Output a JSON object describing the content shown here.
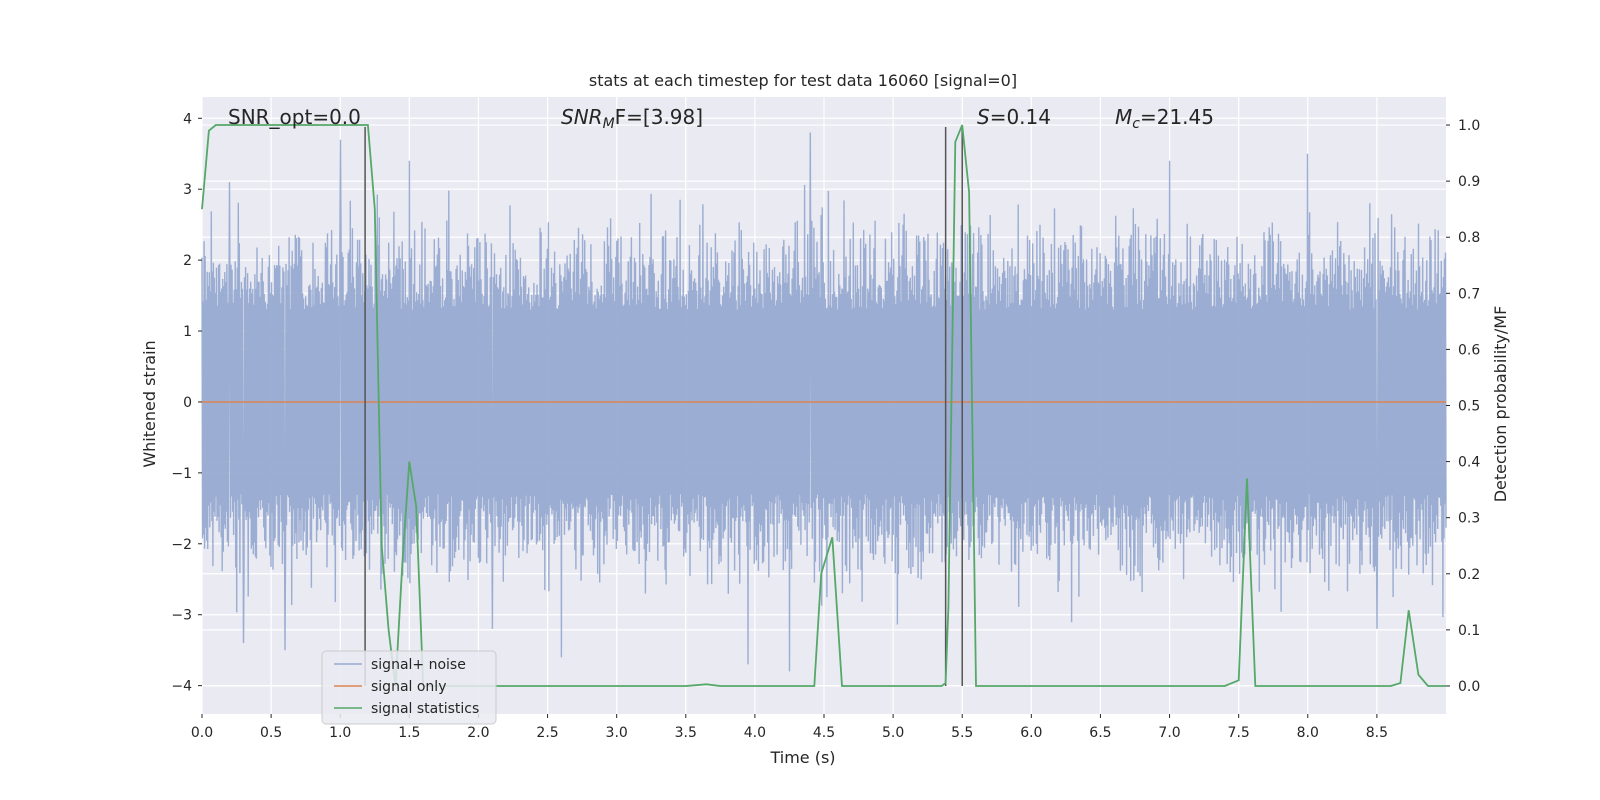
{
  "chart_data": {
    "type": "line",
    "title": "stats at each timestep for test data 16060 [signal=0]",
    "xlabel": "Time (s)",
    "ylabel_left": "Whitened strain",
    "ylabel_right": "Detection probability/MF",
    "xlim": [
      0.0,
      9.0
    ],
    "ylim_left": [
      -4.4,
      4.3
    ],
    "ylim_right": [
      -0.05,
      1.05
    ],
    "xticks": [
      "0.0",
      "0.5",
      "1.0",
      "1.5",
      "2.0",
      "2.5",
      "3.0",
      "3.5",
      "4.0",
      "4.5",
      "5.0",
      "5.5",
      "6.0",
      "6.5",
      "7.0",
      "7.5",
      "8.0",
      "8.5"
    ],
    "xtick_values": [
      0.0,
      0.5,
      1.0,
      1.5,
      2.0,
      2.5,
      3.0,
      3.5,
      4.0,
      4.5,
      5.0,
      5.5,
      6.0,
      6.5,
      7.0,
      7.5,
      8.0,
      8.5
    ],
    "yticks_left": [
      "−4",
      "−3",
      "−2",
      "−1",
      "0",
      "1",
      "2",
      "3",
      "4"
    ],
    "ytick_values_left": [
      -4,
      -3,
      -2,
      -1,
      0,
      1,
      2,
      3,
      4
    ],
    "yticks_right": [
      "0.0",
      "0.1",
      "0.2",
      "0.3",
      "0.4",
      "0.5",
      "0.6",
      "0.7",
      "0.8",
      "0.9",
      "1.0"
    ],
    "ytick_values_right": [
      0.0,
      0.1,
      0.2,
      0.3,
      0.4,
      0.5,
      0.6,
      0.7,
      0.8,
      0.9,
      1.0
    ],
    "annotations": {
      "snr_opt": "SNR_opt=0.0",
      "snr_mf_main": "SNR",
      "snr_mf_sub": "M",
      "snr_mf_rest": "F=[3.98]",
      "s_main": "S",
      "s_rest": "=0.14",
      "mc_main": "M",
      "mc_sub": "c",
      "mc_rest": "=21.45"
    },
    "legend": {
      "placement": "lower-left",
      "entries": [
        "signal+ noise",
        "signal only",
        "signal statistics"
      ]
    },
    "colors": {
      "noise": "#97aad0",
      "signal": "#dd8452",
      "stats": "#55a868",
      "background": "#eaeaf2",
      "grid": "#ffffff",
      "vline": "#555555"
    },
    "series": [
      {
        "name": "signal+ noise",
        "axis": "left",
        "description_range": [
          -2.5,
          2.5
        ],
        "peaks": [
          {
            "x": 1.0,
            "y": 3.7
          },
          {
            "x": 1.5,
            "y": 3.4
          },
          {
            "x": 4.4,
            "y": 3.8
          },
          {
            "x": 7.0,
            "y": 3.4
          },
          {
            "x": 8.0,
            "y": 3.5
          },
          {
            "x": 0.2,
            "y": 3.1
          },
          {
            "x": 2.1,
            "y": -3.2
          },
          {
            "x": 2.6,
            "y": -3.6
          },
          {
            "x": 3.95,
            "y": -3.7
          },
          {
            "x": 4.25,
            "y": -3.8
          },
          {
            "x": 0.3,
            "y": -3.4
          },
          {
            "x": 0.6,
            "y": -3.5
          },
          {
            "x": 8.5,
            "y": -3.2
          }
        ]
      },
      {
        "name": "signal only",
        "axis": "left",
        "x": [
          0.0,
          9.0
        ],
        "y": [
          0.0,
          0.0
        ]
      },
      {
        "name": "signal statistics",
        "axis": "right",
        "x": [
          0.0,
          0.05,
          0.1,
          0.15,
          0.2,
          1.15,
          1.2,
          1.25,
          1.3,
          1.35,
          1.4,
          1.45,
          1.5,
          1.55,
          1.6,
          1.65,
          3.5,
          3.65,
          3.75,
          4.2,
          4.43,
          4.48,
          4.56,
          4.63,
          4.7,
          5.35,
          5.38,
          5.4,
          5.45,
          5.5,
          5.55,
          5.6,
          5.65,
          7.4,
          7.5,
          7.56,
          7.62,
          7.7,
          8.6,
          8.67,
          8.73,
          8.8,
          8.87,
          9.0
        ],
        "y": [
          0.85,
          0.99,
          1.0,
          1.0,
          1.0,
          1.0,
          1.0,
          0.85,
          0.25,
          0.1,
          0.0,
          0.22,
          0.4,
          0.32,
          0.0,
          0.0,
          0.0,
          0.003,
          0.0,
          0.0,
          0.0,
          0.2,
          0.265,
          0.0,
          0.0,
          0.0,
          0.005,
          0.14,
          0.97,
          1.0,
          0.88,
          0.0,
          0.0,
          0.0,
          0.01,
          0.37,
          0.0,
          0.0,
          0.0,
          0.005,
          0.135,
          0.02,
          0.0,
          0.0
        ]
      }
    ],
    "vlines": [
      1.18,
      5.38,
      5.5
    ]
  }
}
